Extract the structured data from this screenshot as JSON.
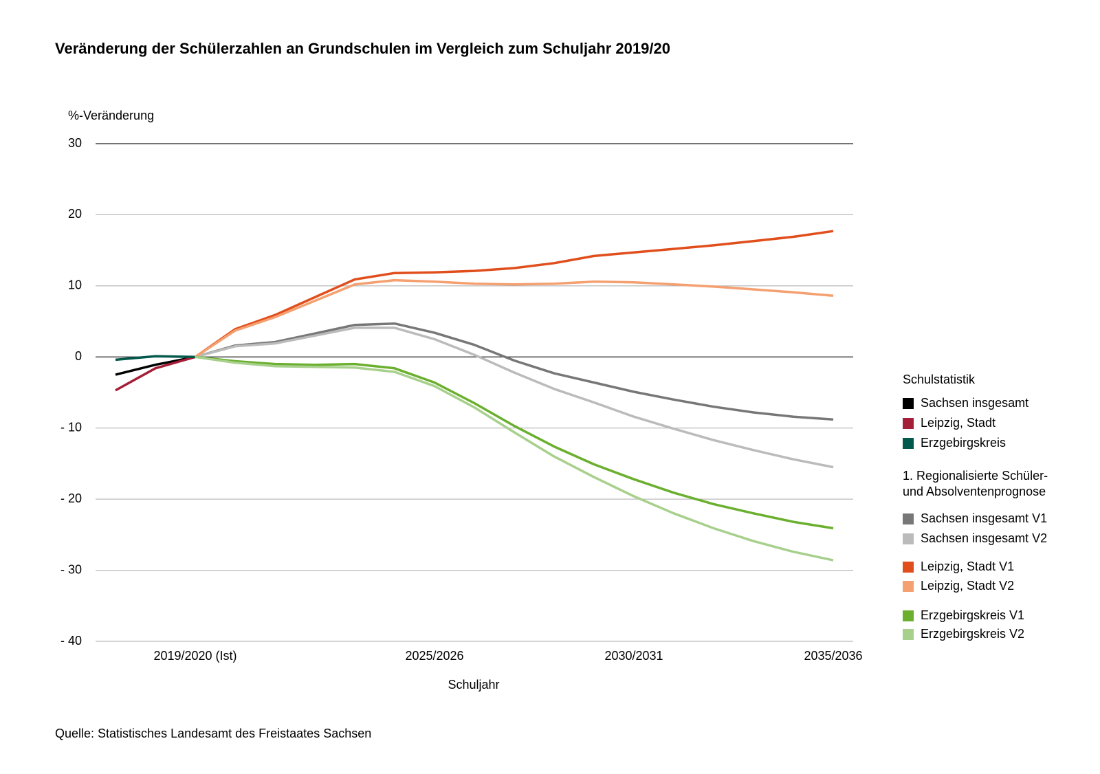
{
  "chart_data": {
    "type": "line",
    "title": "Veränderung der Schülerzahlen an Grundschulen im Vergleich zum Schuljahr 2019/20",
    "y_label": "%-Veränderung",
    "x_label": "Schuljahr",
    "source": "Quelle: Statistisches Landesamt des Freistaates Sachsen",
    "legend_title_1": "Schulstatistik",
    "legend_title_2": [
      "1. Regionalisierte Schüler-",
      "und Absolventenprognose"
    ],
    "categories": [
      null,
      null,
      "2019/2020 (Ist)",
      null,
      null,
      null,
      null,
      null,
      "2025/2026",
      null,
      null,
      null,
      null,
      "2030/2031",
      null,
      null,
      null,
      null,
      "2035/2036"
    ],
    "ylim": [
      -40,
      30
    ],
    "yticks": [
      {
        "value": -40,
        "label": "- 40"
      },
      {
        "value": -30,
        "label": "- 30"
      },
      {
        "value": -20,
        "label": "- 20"
      },
      {
        "value": -10,
        "label": "- 10"
      },
      0,
      10,
      20,
      30
    ],
    "grid": true,
    "series": [
      {
        "name": "Sachsen insgesamt",
        "color": "#000000",
        "values": [
          -2.5,
          -1.1,
          0,
          null,
          null,
          null,
          null,
          null,
          null,
          null,
          null,
          null,
          null,
          null,
          null,
          null,
          null,
          null,
          null
        ]
      },
      {
        "name": "Leipzig, Stadt",
        "color": "#a51e37",
        "values": [
          -4.7,
          -1.6,
          0,
          null,
          null,
          null,
          null,
          null,
          null,
          null,
          null,
          null,
          null,
          null,
          null,
          null,
          null,
          null,
          null
        ]
      },
      {
        "name": "Erzgebirgskreis",
        "color": "#00594a",
        "values": [
          -0.4,
          0.1,
          0,
          null,
          null,
          null,
          null,
          null,
          null,
          null,
          null,
          null,
          null,
          null,
          null,
          null,
          null,
          null,
          null
        ]
      },
      {
        "name": "Sachsen insgesamt V1",
        "color": "#777777",
        "values": [
          null,
          null,
          0,
          1.6,
          2.1,
          3.3,
          4.5,
          4.7,
          3.4,
          1.7,
          -0.5,
          -2.3,
          -3.6,
          -4.9,
          -6.0,
          -7.0,
          -7.8,
          -8.4,
          -8.8
        ]
      },
      {
        "name": "Sachsen insgesamt V2",
        "color": "#bbbbbb",
        "values": [
          null,
          null,
          0,
          1.5,
          1.9,
          3.0,
          4.1,
          4.1,
          2.5,
          0.3,
          -2.2,
          -4.5,
          -6.4,
          -8.4,
          -10.1,
          -11.7,
          -13.1,
          -14.4,
          -15.5
        ]
      },
      {
        "name": "Leipzig, Stadt V1",
        "color": "#e04e1c",
        "values": [
          null,
          null,
          0,
          3.9,
          5.9,
          8.4,
          10.9,
          11.8,
          11.9,
          12.1,
          12.5,
          13.2,
          14.2,
          14.7,
          15.2,
          15.7,
          16.3,
          16.9,
          17.7
        ]
      },
      {
        "name": "Leipzig, Stadt V2",
        "color": "#f4a070",
        "values": [
          null,
          null,
          0,
          3.7,
          5.6,
          7.9,
          10.2,
          10.8,
          10.6,
          10.3,
          10.2,
          10.3,
          10.6,
          10.5,
          10.2,
          9.9,
          9.5,
          9.1,
          8.6
        ]
      },
      {
        "name": "Erzgebirgskreis V1",
        "color": "#6aaf2e",
        "values": [
          null,
          null,
          0,
          -0.6,
          -1.0,
          -1.1,
          -1.0,
          -1.6,
          -3.6,
          -6.5,
          -9.7,
          -12.6,
          -15.1,
          -17.2,
          -19.1,
          -20.7,
          -22.0,
          -23.2,
          -24.1
        ]
      },
      {
        "name": "Erzgebirgskreis V2",
        "color": "#a8d08d",
        "values": [
          null,
          null,
          0,
          -0.8,
          -1.3,
          -1.4,
          -1.5,
          -2.1,
          -4.1,
          -7.1,
          -10.6,
          -14.0,
          -16.9,
          -19.6,
          -22.0,
          -24.1,
          -25.9,
          -27.4,
          -28.6
        ]
      }
    ]
  }
}
